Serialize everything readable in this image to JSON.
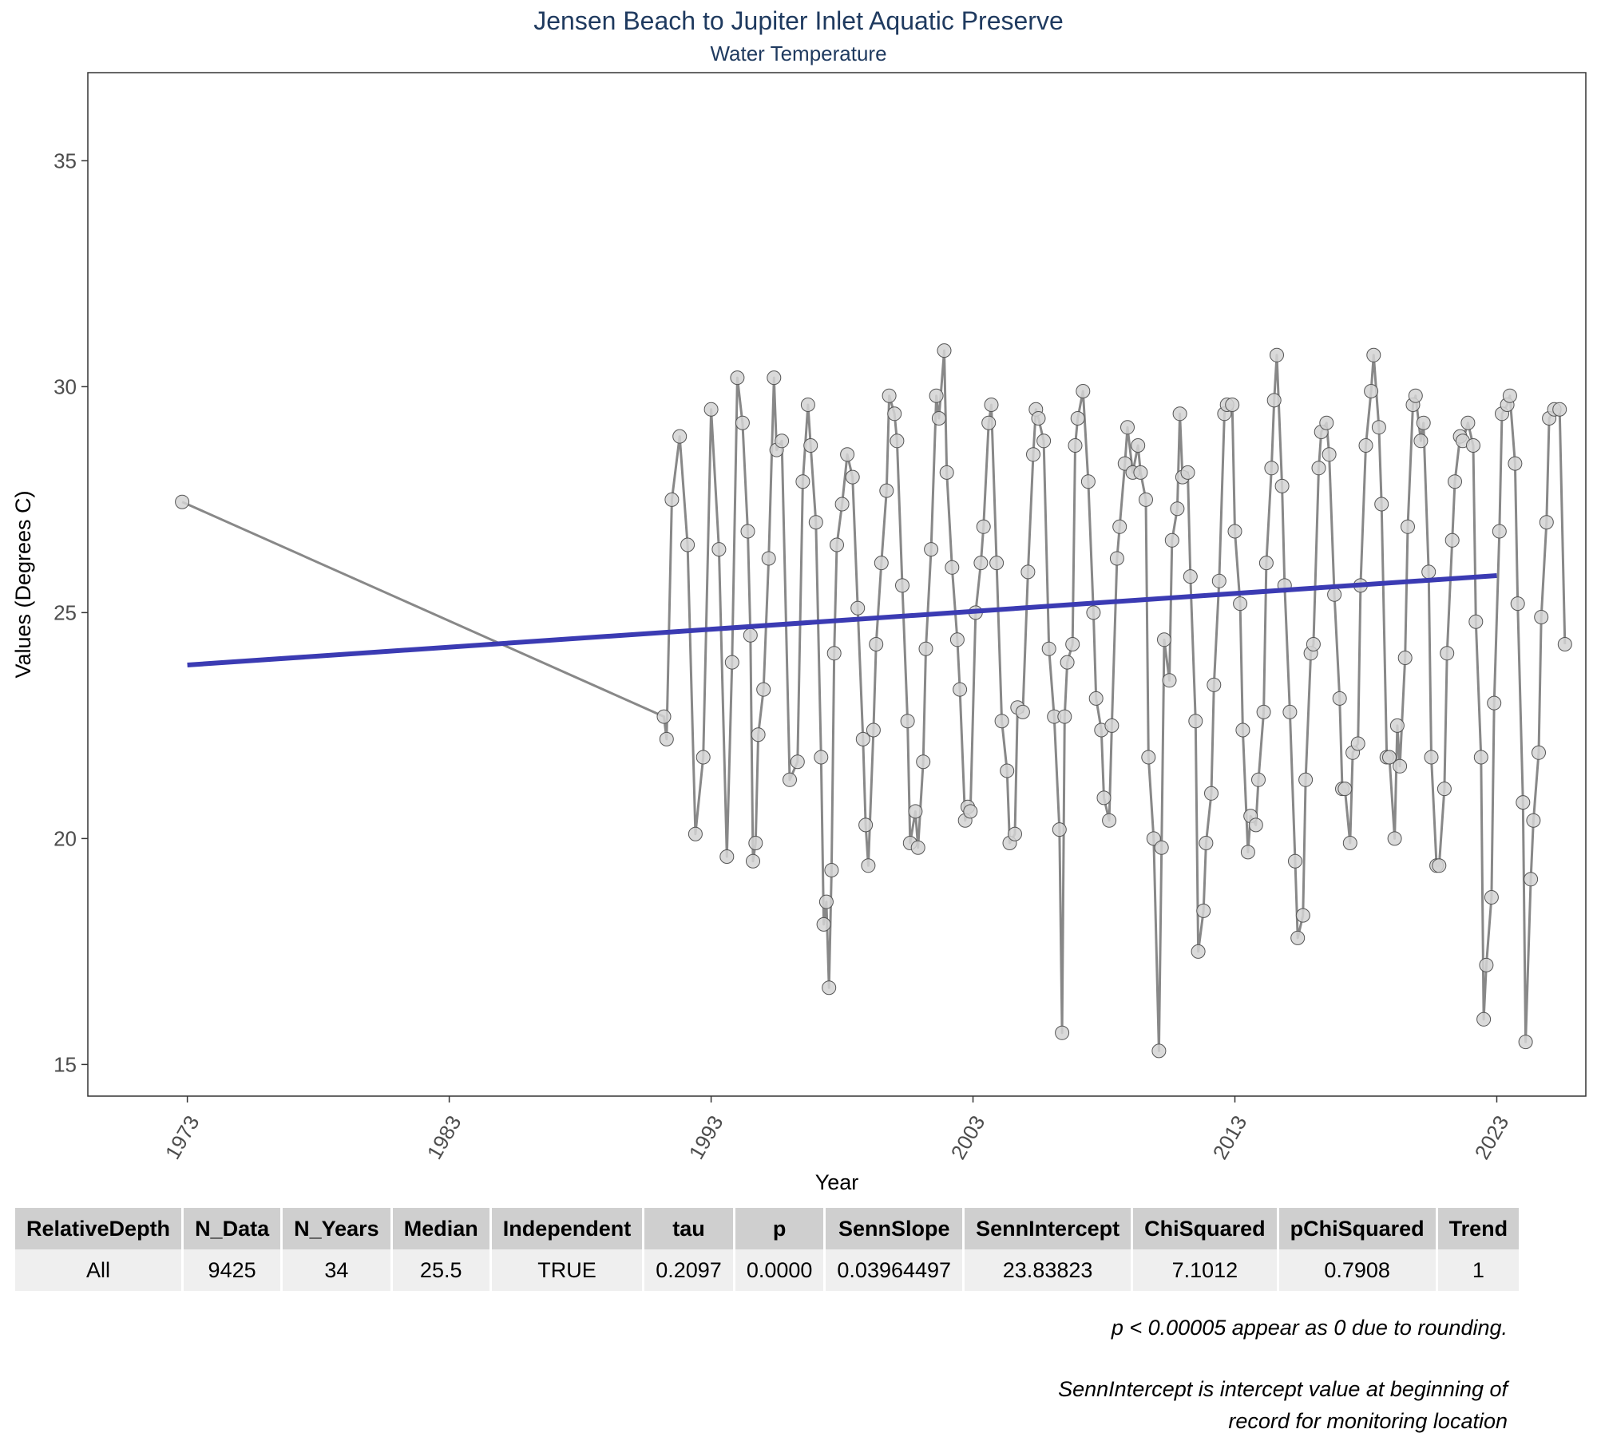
{
  "chart_data": {
    "type": "line",
    "title": "Jensen Beach to Jupiter Inlet Aquatic Preserve",
    "subtitle": "Water Temperature",
    "xlabel": "Year",
    "ylabel": "Values (Degrees C)",
    "xlim": [
      1969.2,
      2026.4
    ],
    "ylim": [
      14.3,
      36.95
    ],
    "x_ticks": [
      1973,
      1983,
      1993,
      2003,
      2013,
      2023
    ],
    "y_ticks": [
      15,
      20,
      25,
      30,
      35
    ],
    "grid": false,
    "series": [
      {
        "color": "#888888",
        "marker_fill": "#d3d3d3",
        "points": [
          [
            1972.8,
            27.45
          ],
          [
            1991.2,
            22.7
          ],
          [
            1991.3,
            22.2
          ],
          [
            1991.5,
            27.5
          ],
          [
            1991.8,
            28.9
          ],
          [
            1992.1,
            26.5
          ],
          [
            1992.4,
            20.1
          ],
          [
            1992.7,
            21.8
          ],
          [
            1993.0,
            29.5
          ],
          [
            1993.3,
            26.4
          ],
          [
            1993.6,
            19.6
          ],
          [
            1993.8,
            23.9
          ],
          [
            1994.0,
            30.2
          ],
          [
            1994.2,
            29.2
          ],
          [
            1994.4,
            26.8
          ],
          [
            1994.5,
            24.5
          ],
          [
            1994.6,
            19.5
          ],
          [
            1994.7,
            19.9
          ],
          [
            1994.8,
            22.3
          ],
          [
            1995.0,
            23.3
          ],
          [
            1995.2,
            26.2
          ],
          [
            1995.4,
            30.2
          ],
          [
            1995.5,
            28.6
          ],
          [
            1995.7,
            28.8
          ],
          [
            1996.0,
            21.3
          ],
          [
            1996.3,
            21.7
          ],
          [
            1996.5,
            27.9
          ],
          [
            1996.7,
            29.6
          ],
          [
            1996.8,
            28.7
          ],
          [
            1997.0,
            27.0
          ],
          [
            1997.2,
            21.8
          ],
          [
            1997.3,
            18.1
          ],
          [
            1997.4,
            18.6
          ],
          [
            1997.5,
            16.7
          ],
          [
            1997.6,
            19.3
          ],
          [
            1997.7,
            24.1
          ],
          [
            1997.8,
            26.5
          ],
          [
            1998.0,
            27.4
          ],
          [
            1998.2,
            28.5
          ],
          [
            1998.4,
            28.0
          ],
          [
            1998.6,
            25.1
          ],
          [
            1998.8,
            22.2
          ],
          [
            1998.9,
            20.3
          ],
          [
            1999.0,
            19.4
          ],
          [
            1999.2,
            22.4
          ],
          [
            1999.3,
            24.3
          ],
          [
            1999.5,
            26.1
          ],
          [
            1999.7,
            27.7
          ],
          [
            1999.8,
            29.8
          ],
          [
            2000.0,
            29.4
          ],
          [
            2000.1,
            28.8
          ],
          [
            2000.3,
            25.6
          ],
          [
            2000.5,
            22.6
          ],
          [
            2000.6,
            19.9
          ],
          [
            2000.8,
            20.6
          ],
          [
            2000.9,
            19.8
          ],
          [
            2001.1,
            21.7
          ],
          [
            2001.2,
            24.2
          ],
          [
            2001.4,
            26.4
          ],
          [
            2001.6,
            29.8
          ],
          [
            2001.7,
            29.3
          ],
          [
            2001.9,
            30.8
          ],
          [
            2002.0,
            28.1
          ],
          [
            2002.2,
            26.0
          ],
          [
            2002.4,
            24.4
          ],
          [
            2002.5,
            23.3
          ],
          [
            2002.7,
            20.4
          ],
          [
            2002.8,
            20.7
          ],
          [
            2002.9,
            20.6
          ],
          [
            2003.1,
            25.0
          ],
          [
            2003.3,
            26.1
          ],
          [
            2003.4,
            26.9
          ],
          [
            2003.6,
            29.2
          ],
          [
            2003.7,
            29.6
          ],
          [
            2003.9,
            26.1
          ],
          [
            2004.1,
            22.6
          ],
          [
            2004.3,
            21.5
          ],
          [
            2004.4,
            19.9
          ],
          [
            2004.6,
            20.1
          ],
          [
            2004.7,
            22.9
          ],
          [
            2004.9,
            22.8
          ],
          [
            2005.1,
            25.9
          ],
          [
            2005.3,
            28.5
          ],
          [
            2005.4,
            29.5
          ],
          [
            2005.5,
            29.3
          ],
          [
            2005.7,
            28.8
          ],
          [
            2005.9,
            24.2
          ],
          [
            2006.1,
            22.7
          ],
          [
            2006.3,
            20.2
          ],
          [
            2006.4,
            15.7
          ],
          [
            2006.5,
            22.7
          ],
          [
            2006.6,
            23.9
          ],
          [
            2006.8,
            24.3
          ],
          [
            2006.9,
            28.7
          ],
          [
            2007.0,
            29.3
          ],
          [
            2007.2,
            29.9
          ],
          [
            2007.4,
            27.9
          ],
          [
            2007.6,
            25.0
          ],
          [
            2007.7,
            23.1
          ],
          [
            2007.9,
            22.4
          ],
          [
            2008.0,
            20.9
          ],
          [
            2008.2,
            20.4
          ],
          [
            2008.3,
            22.5
          ],
          [
            2008.5,
            26.2
          ],
          [
            2008.6,
            26.9
          ],
          [
            2008.8,
            28.3
          ],
          [
            2008.9,
            29.1
          ],
          [
            2009.1,
            28.1
          ],
          [
            2009.3,
            28.7
          ],
          [
            2009.4,
            28.1
          ],
          [
            2009.6,
            27.5
          ],
          [
            2009.7,
            21.8
          ],
          [
            2009.9,
            20.0
          ],
          [
            2010.1,
            15.3
          ],
          [
            2010.2,
            19.8
          ],
          [
            2010.3,
            24.4
          ],
          [
            2010.5,
            23.5
          ],
          [
            2010.6,
            26.6
          ],
          [
            2010.8,
            27.3
          ],
          [
            2010.9,
            29.4
          ],
          [
            2011.0,
            28.0
          ],
          [
            2011.2,
            28.1
          ],
          [
            2011.3,
            25.8
          ],
          [
            2011.5,
            22.6
          ],
          [
            2011.6,
            17.5
          ],
          [
            2011.8,
            18.4
          ],
          [
            2011.9,
            19.9
          ],
          [
            2012.1,
            21.0
          ],
          [
            2012.2,
            23.4
          ],
          [
            2012.4,
            25.7
          ],
          [
            2012.6,
            29.4
          ],
          [
            2012.7,
            29.6
          ],
          [
            2012.9,
            29.6
          ],
          [
            2013.0,
            26.8
          ],
          [
            2013.2,
            25.2
          ],
          [
            2013.3,
            22.4
          ],
          [
            2013.5,
            19.7
          ],
          [
            2013.6,
            20.5
          ],
          [
            2013.8,
            20.3
          ],
          [
            2013.9,
            21.3
          ],
          [
            2014.1,
            22.8
          ],
          [
            2014.2,
            26.1
          ],
          [
            2014.4,
            28.2
          ],
          [
            2014.5,
            29.7
          ],
          [
            2014.6,
            30.7
          ],
          [
            2014.8,
            27.8
          ],
          [
            2014.9,
            25.6
          ],
          [
            2015.1,
            22.8
          ],
          [
            2015.3,
            19.5
          ],
          [
            2015.4,
            17.8
          ],
          [
            2015.6,
            18.3
          ],
          [
            2015.7,
            21.3
          ],
          [
            2015.9,
            24.1
          ],
          [
            2016.0,
            24.3
          ],
          [
            2016.2,
            28.2
          ],
          [
            2016.3,
            29.0
          ],
          [
            2016.5,
            29.2
          ],
          [
            2016.6,
            28.5
          ],
          [
            2016.8,
            25.4
          ],
          [
            2017.0,
            23.1
          ],
          [
            2017.1,
            21.1
          ],
          [
            2017.2,
            21.1
          ],
          [
            2017.4,
            19.9
          ],
          [
            2017.5,
            21.9
          ],
          [
            2017.7,
            22.1
          ],
          [
            2017.8,
            25.6
          ],
          [
            2018.0,
            28.7
          ],
          [
            2018.2,
            29.9
          ],
          [
            2018.3,
            30.7
          ],
          [
            2018.5,
            29.1
          ],
          [
            2018.6,
            27.4
          ],
          [
            2018.8,
            21.8
          ],
          [
            2018.9,
            21.8
          ],
          [
            2019.1,
            20.0
          ],
          [
            2019.2,
            22.5
          ],
          [
            2019.3,
            21.6
          ],
          [
            2019.5,
            24.0
          ],
          [
            2019.6,
            26.9
          ],
          [
            2019.8,
            29.6
          ],
          [
            2019.9,
            29.8
          ],
          [
            2020.1,
            28.8
          ],
          [
            2020.2,
            29.2
          ],
          [
            2020.4,
            25.9
          ],
          [
            2020.5,
            21.8
          ],
          [
            2020.7,
            19.4
          ],
          [
            2020.8,
            19.4
          ],
          [
            2021.0,
            21.1
          ],
          [
            2021.1,
            24.1
          ],
          [
            2021.3,
            26.6
          ],
          [
            2021.4,
            27.9
          ],
          [
            2021.6,
            28.9
          ],
          [
            2021.7,
            28.8
          ],
          [
            2021.9,
            29.2
          ],
          [
            2022.1,
            28.7
          ],
          [
            2022.2,
            24.8
          ],
          [
            2022.4,
            21.8
          ],
          [
            2022.5,
            16.0
          ],
          [
            2022.6,
            17.2
          ],
          [
            2022.8,
            18.7
          ],
          [
            2022.9,
            23.0
          ],
          [
            2023.1,
            26.8
          ],
          [
            2023.2,
            29.4
          ],
          [
            2023.4,
            29.6
          ],
          [
            2023.5,
            29.8
          ],
          [
            2023.7,
            28.3
          ],
          [
            2023.8,
            25.2
          ],
          [
            2024.0,
            20.8
          ],
          [
            2024.1,
            15.5
          ],
          [
            2024.3,
            19.1
          ],
          [
            2024.4,
            20.4
          ],
          [
            2024.6,
            21.9
          ],
          [
            2024.7,
            24.9
          ],
          [
            2024.9,
            27.0
          ],
          [
            2025.0,
            29.3
          ],
          [
            2025.2,
            29.5
          ],
          [
            2025.4,
            29.5
          ],
          [
            2025.6,
            24.3
          ]
        ]
      },
      {
        "color": "#3b3bb3",
        "points": [
          [
            1973.0,
            23.84
          ],
          [
            2023.0,
            25.82
          ]
        ]
      }
    ]
  },
  "table": {
    "headers": [
      "RelativeDepth",
      "N_Data",
      "N_Years",
      "Median",
      "Independent",
      "tau",
      "p",
      "SennSlope",
      "SennIntercept",
      "ChiSquared",
      "pChiSquared",
      "Trend"
    ],
    "rows": [
      [
        "All",
        "9425",
        "34",
        "25.5",
        "TRUE",
        "0.2097",
        "0.0000",
        "0.03964497",
        "23.83823",
        "7.1012",
        "0.7908",
        "1"
      ]
    ]
  },
  "notes": {
    "rounding": "p < 0.00005 appear as 0 due to rounding.",
    "intercept": "SennIntercept is intercept value at beginning of record for monitoring location"
  }
}
